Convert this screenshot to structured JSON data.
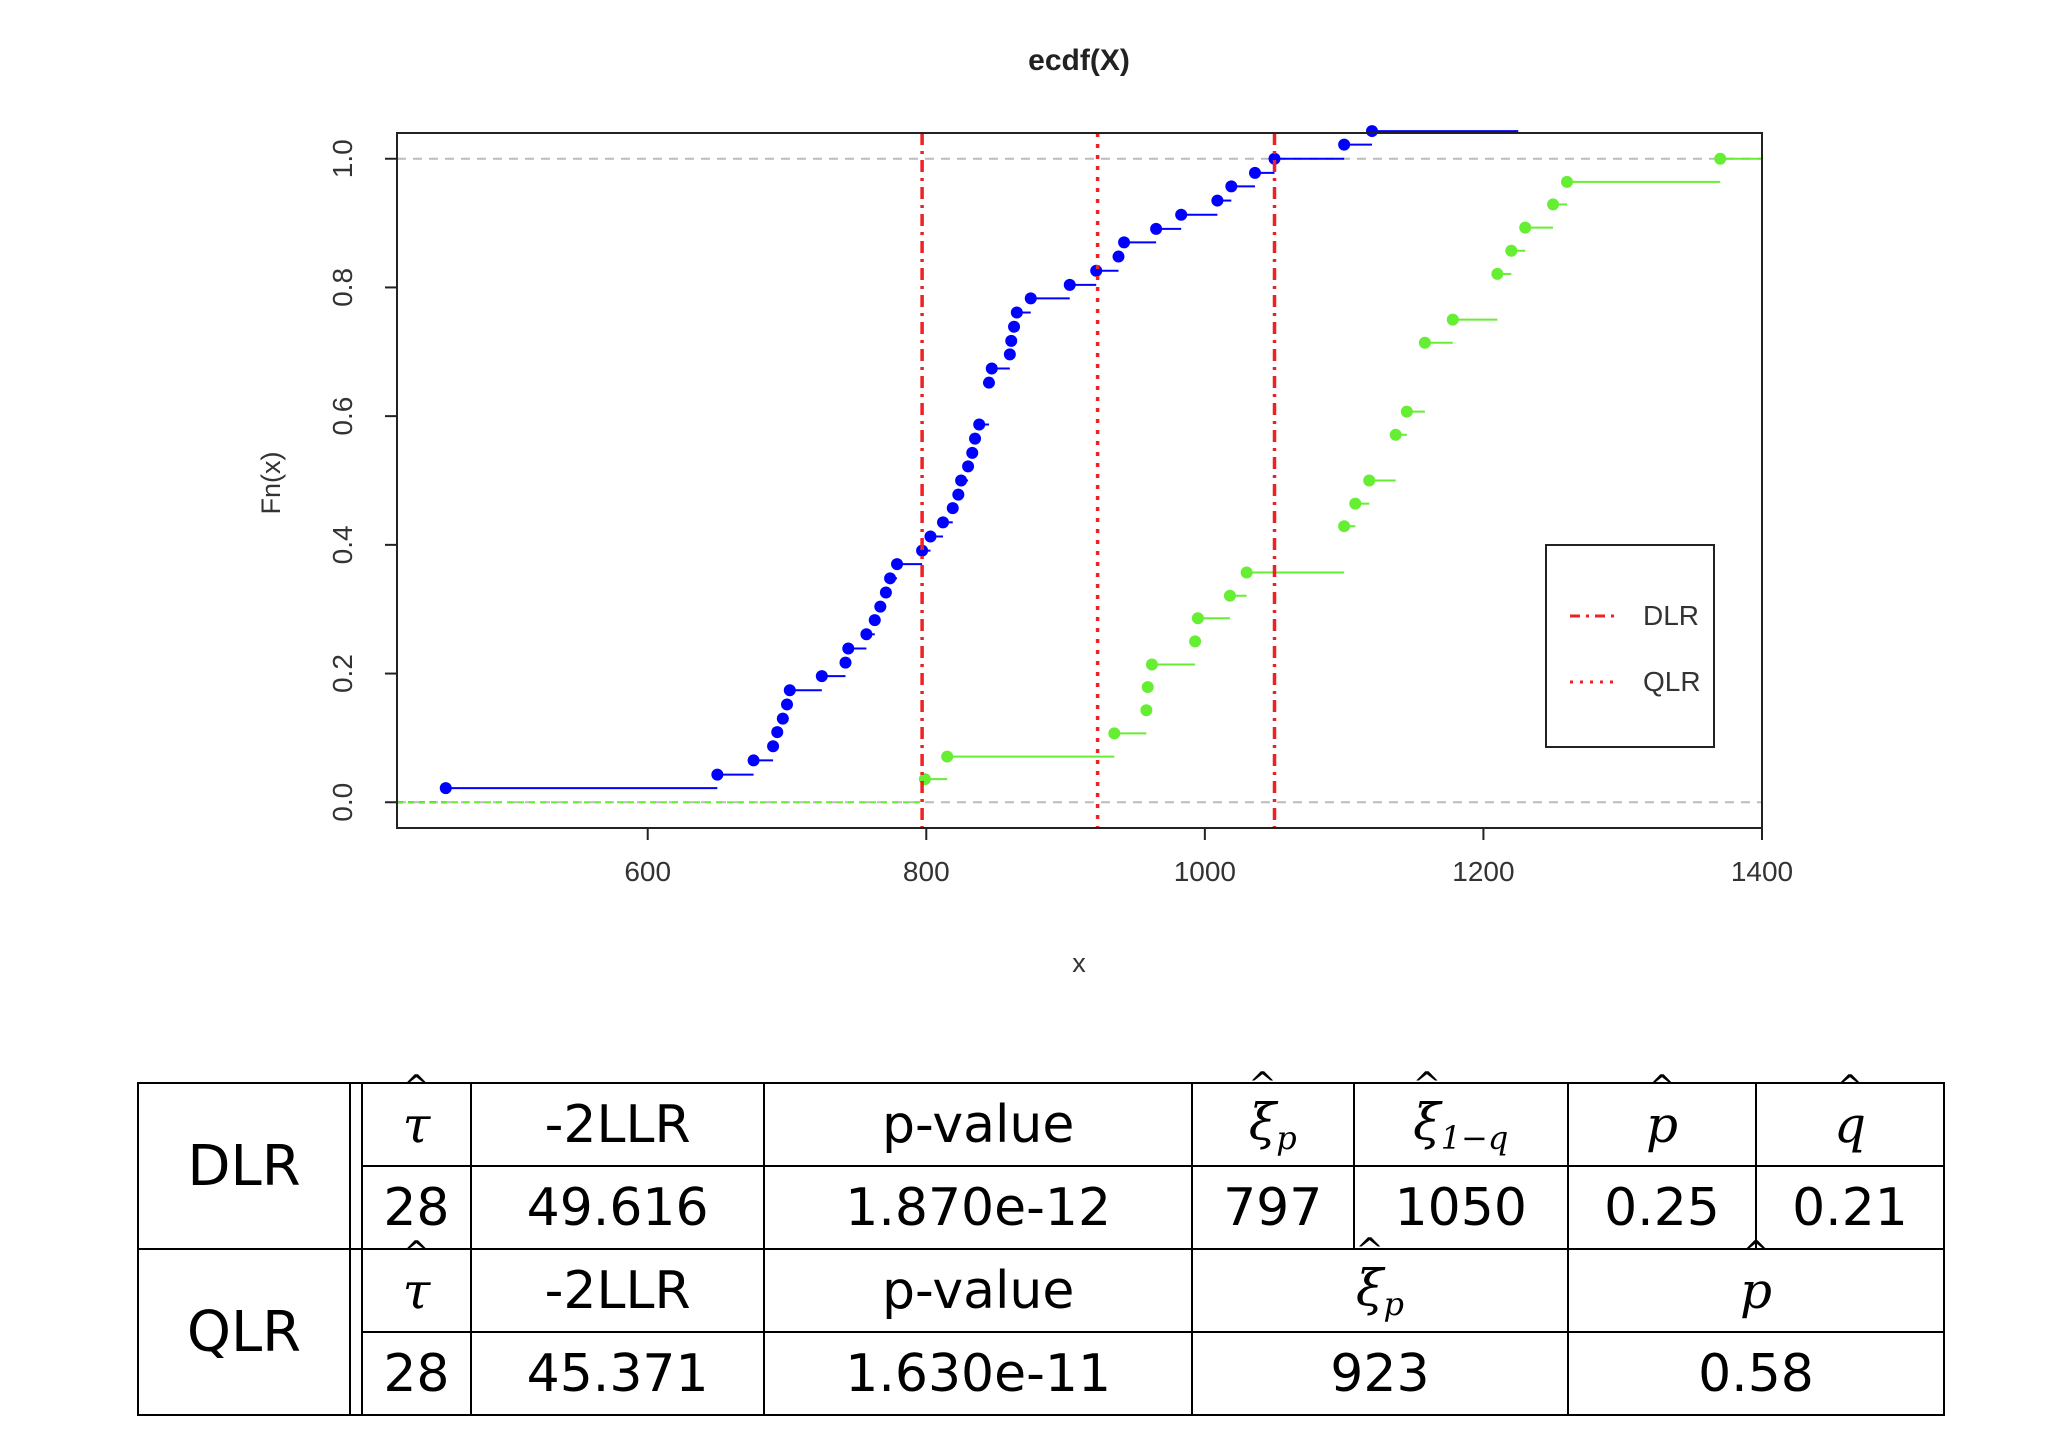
{
  "chart_data": {
    "type": "line",
    "title": "ecdf(X)",
    "xlabel": "x",
    "ylabel": "Fn(x)",
    "xlim": [
      420,
      1400
    ],
    "ylim": [
      -0.04,
      1.04
    ],
    "xticks": [
      "600",
      "800",
      "1000",
      "1200",
      "1400"
    ],
    "yticks": [
      "0.0",
      "0.2",
      "0.4",
      "0.6",
      "0.8",
      "1.0"
    ],
    "legend_position": "right",
    "series": [
      {
        "color": "#0000ff",
        "x": [
          455,
          650,
          676,
          690,
          693,
          697,
          700,
          702,
          725,
          742,
          744,
          757,
          763,
          767,
          771,
          774,
          779,
          797,
          803,
          812,
          819,
          823,
          825,
          830,
          833,
          835,
          838,
          845,
          847,
          860,
          861,
          863,
          865,
          875,
          903,
          922,
          938,
          942,
          965,
          983,
          1009,
          1019,
          1036,
          1050,
          1100,
          1120
        ],
        "y": [
          0.022,
          0.043,
          0.065,
          0.087,
          0.109,
          0.13,
          0.152,
          0.174,
          0.196,
          0.217,
          0.239,
          0.261,
          0.283,
          0.304,
          0.326,
          0.348,
          0.37,
          0.391,
          0.413,
          0.435,
          0.457,
          0.478,
          0.5,
          0.522,
          0.543,
          0.565,
          0.587,
          0.652,
          0.674,
          0.696,
          0.717,
          0.739,
          0.761,
          0.783,
          0.804,
          0.826,
          0.848,
          0.87,
          0.891,
          0.913,
          0.935,
          0.957,
          0.978,
          1.0,
          1.022,
          1.043
        ],
        "extend_to": 1225
      },
      {
        "color": "#66ee33",
        "x": [
          799,
          815,
          935,
          958,
          959,
          962,
          993,
          995,
          1018,
          1030,
          1100,
          1108,
          1118,
          1137,
          1145,
          1158,
          1178,
          1210,
          1220,
          1230,
          1250,
          1260,
          1370
        ],
        "y": [
          0.036,
          0.071,
          0.107,
          0.143,
          0.179,
          0.214,
          0.25,
          0.286,
          0.321,
          0.357,
          0.429,
          0.464,
          0.5,
          0.571,
          0.607,
          0.714,
          0.75,
          0.821,
          0.857,
          0.893,
          0.929,
          0.964,
          1.0
        ],
        "extend_to": 1400
      }
    ],
    "vlines": [
      {
        "name": "DLR",
        "style": "dotdash",
        "color": "#ee2222",
        "x": [
          797,
          1050
        ]
      },
      {
        "name": "QLR",
        "style": "dotted",
        "color": "#ee2222",
        "x": [
          923
        ]
      }
    ],
    "hlines": [
      0,
      1
    ]
  },
  "table": {
    "dlr": {
      "label": "DLR",
      "headers": [
        "τ",
        "-2LLR",
        "p-value",
        "ξ",
        "p",
        "ξ",
        "1−q",
        "p",
        "q"
      ],
      "values": [
        "28",
        "49.616",
        "1.870e-12",
        "797",
        "1050",
        "0.25",
        "0.21"
      ]
    },
    "qlr": {
      "label": "QLR",
      "headers": [
        "τ",
        "-2LLR",
        "p-value",
        "ξ",
        "p",
        "p"
      ],
      "values": [
        "28",
        "45.371",
        "1.630e-11",
        "923",
        "0.58"
      ]
    }
  }
}
